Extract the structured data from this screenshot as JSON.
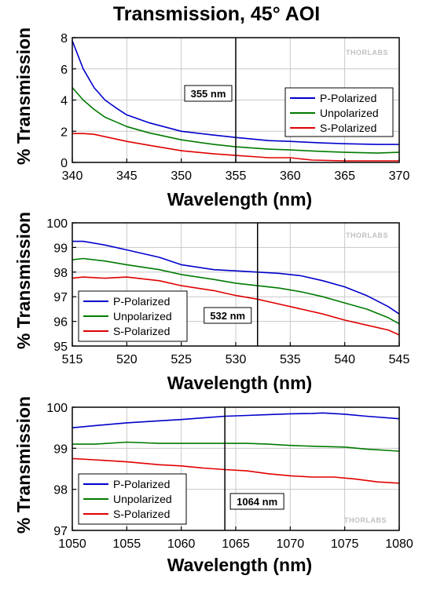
{
  "title": "Transmission, 45° AOI",
  "watermark": "THORLABS",
  "colors": {
    "p": "#0000cc",
    "u": "#007a00",
    "s": "#e00000",
    "grid": "#c8c8c8",
    "marker": "#000000"
  },
  "chart_data": [
    {
      "type": "line",
      "xlabel": "Wavelength (nm)",
      "ylabel": "% Transmission",
      "xlim": [
        340,
        370
      ],
      "ylim": [
        0,
        8
      ],
      "xticks": [
        340,
        345,
        350,
        355,
        360,
        365,
        370
      ],
      "yticks": [
        0,
        2,
        4,
        6,
        8
      ],
      "grid": true,
      "legend_position": "right",
      "marker": {
        "x": 355,
        "label": "355 nm"
      },
      "series": [
        {
          "name": "P-Polarized",
          "color": "#0000cc",
          "x": [
            340,
            341,
            342,
            343,
            344,
            345,
            347,
            350,
            353,
            355,
            358,
            360,
            363,
            365,
            368,
            370
          ],
          "y": [
            7.8,
            6.0,
            4.8,
            4.0,
            3.5,
            3.05,
            2.55,
            2.0,
            1.75,
            1.6,
            1.4,
            1.35,
            1.25,
            1.2,
            1.15,
            1.15
          ]
        },
        {
          "name": "Unpolarized",
          "color": "#007a00",
          "x": [
            340,
            341,
            342,
            343,
            344,
            345,
            347,
            350,
            353,
            355,
            358,
            360,
            363,
            365,
            368,
            370
          ],
          "y": [
            4.8,
            4.0,
            3.4,
            2.9,
            2.6,
            2.3,
            1.9,
            1.45,
            1.15,
            1.0,
            0.85,
            0.8,
            0.7,
            0.65,
            0.6,
            0.65
          ]
        },
        {
          "name": "S-Polarized",
          "color": "#e00000",
          "x": [
            340,
            341,
            342,
            343,
            345,
            347,
            350,
            353,
            355,
            357,
            358,
            360,
            362,
            365,
            368,
            370
          ],
          "y": [
            1.85,
            1.85,
            1.8,
            1.65,
            1.35,
            1.1,
            0.75,
            0.55,
            0.45,
            0.35,
            0.3,
            0.3,
            0.15,
            0.1,
            0.1,
            0.1
          ]
        }
      ]
    },
    {
      "type": "line",
      "xlabel": "Wavelength (nm)",
      "ylabel": "% Transmission",
      "xlim": [
        515,
        545
      ],
      "ylim": [
        95,
        100
      ],
      "xticks": [
        515,
        520,
        525,
        530,
        535,
        540,
        545
      ],
      "yticks": [
        95,
        96,
        97,
        98,
        99,
        100
      ],
      "grid": true,
      "legend_position": "bottom-left",
      "marker": {
        "x": 532,
        "label": "532 nm"
      },
      "series": [
        {
          "name": "P-Polarized",
          "color": "#0000cc",
          "x": [
            515,
            516,
            518,
            520,
            523,
            525,
            528,
            530,
            532,
            534,
            536,
            538,
            540,
            542,
            544,
            545
          ],
          "y": [
            99.25,
            99.25,
            99.1,
            98.9,
            98.6,
            98.3,
            98.1,
            98.05,
            98.0,
            97.95,
            97.85,
            97.65,
            97.4,
            97.05,
            96.6,
            96.3
          ]
        },
        {
          "name": "Unpolarized",
          "color": "#007a00",
          "x": [
            515,
            516,
            518,
            520,
            523,
            525,
            528,
            530,
            532,
            534,
            536,
            538,
            540,
            542,
            544,
            545
          ],
          "y": [
            98.5,
            98.55,
            98.45,
            98.3,
            98.1,
            97.9,
            97.7,
            97.55,
            97.45,
            97.35,
            97.2,
            97.0,
            96.75,
            96.5,
            96.15,
            95.9
          ]
        },
        {
          "name": "S-Polarized",
          "color": "#e00000",
          "x": [
            515,
            516,
            518,
            520,
            523,
            525,
            528,
            530,
            532,
            534,
            536,
            538,
            540,
            542,
            544,
            545
          ],
          "y": [
            97.75,
            97.8,
            97.75,
            97.8,
            97.65,
            97.45,
            97.25,
            97.05,
            96.9,
            96.7,
            96.5,
            96.3,
            96.05,
            95.85,
            95.65,
            95.45
          ]
        }
      ]
    },
    {
      "type": "line",
      "xlabel": "Wavelength (nm)",
      "ylabel": "% Transmission",
      "xlim": [
        1050,
        1080
      ],
      "ylim": [
        97,
        100
      ],
      "xticks": [
        1050,
        1055,
        1060,
        1065,
        1070,
        1075,
        1080
      ],
      "yticks": [
        97,
        98,
        99,
        100
      ],
      "grid": true,
      "legend_position": "bottom-left",
      "marker": {
        "x": 1064,
        "label": "1064 nm"
      },
      "series": [
        {
          "name": "P-Polarized",
          "color": "#0000cc",
          "x": [
            1050,
            1052,
            1055,
            1058,
            1060,
            1062,
            1064,
            1066,
            1068,
            1070,
            1072,
            1073,
            1075,
            1077,
            1080
          ],
          "y": [
            99.5,
            99.55,
            99.62,
            99.67,
            99.7,
            99.74,
            99.78,
            99.8,
            99.82,
            99.84,
            99.85,
            99.86,
            99.83,
            99.78,
            99.72
          ]
        },
        {
          "name": "Unpolarized",
          "color": "#007a00",
          "x": [
            1050,
            1052,
            1055,
            1058,
            1060,
            1063,
            1066,
            1068,
            1070,
            1072,
            1075,
            1077,
            1080
          ],
          "y": [
            99.1,
            99.1,
            99.15,
            99.12,
            99.12,
            99.12,
            99.12,
            99.1,
            99.07,
            99.05,
            99.03,
            98.98,
            98.93
          ]
        },
        {
          "name": "S-Polarized",
          "color": "#e00000",
          "x": [
            1050,
            1052,
            1055,
            1058,
            1060,
            1062,
            1064,
            1066,
            1068,
            1070,
            1072,
            1074,
            1076,
            1078,
            1080
          ],
          "y": [
            98.75,
            98.72,
            98.67,
            98.6,
            98.57,
            98.52,
            98.48,
            98.45,
            98.38,
            98.33,
            98.3,
            98.3,
            98.25,
            98.18,
            98.15
          ]
        }
      ]
    }
  ]
}
